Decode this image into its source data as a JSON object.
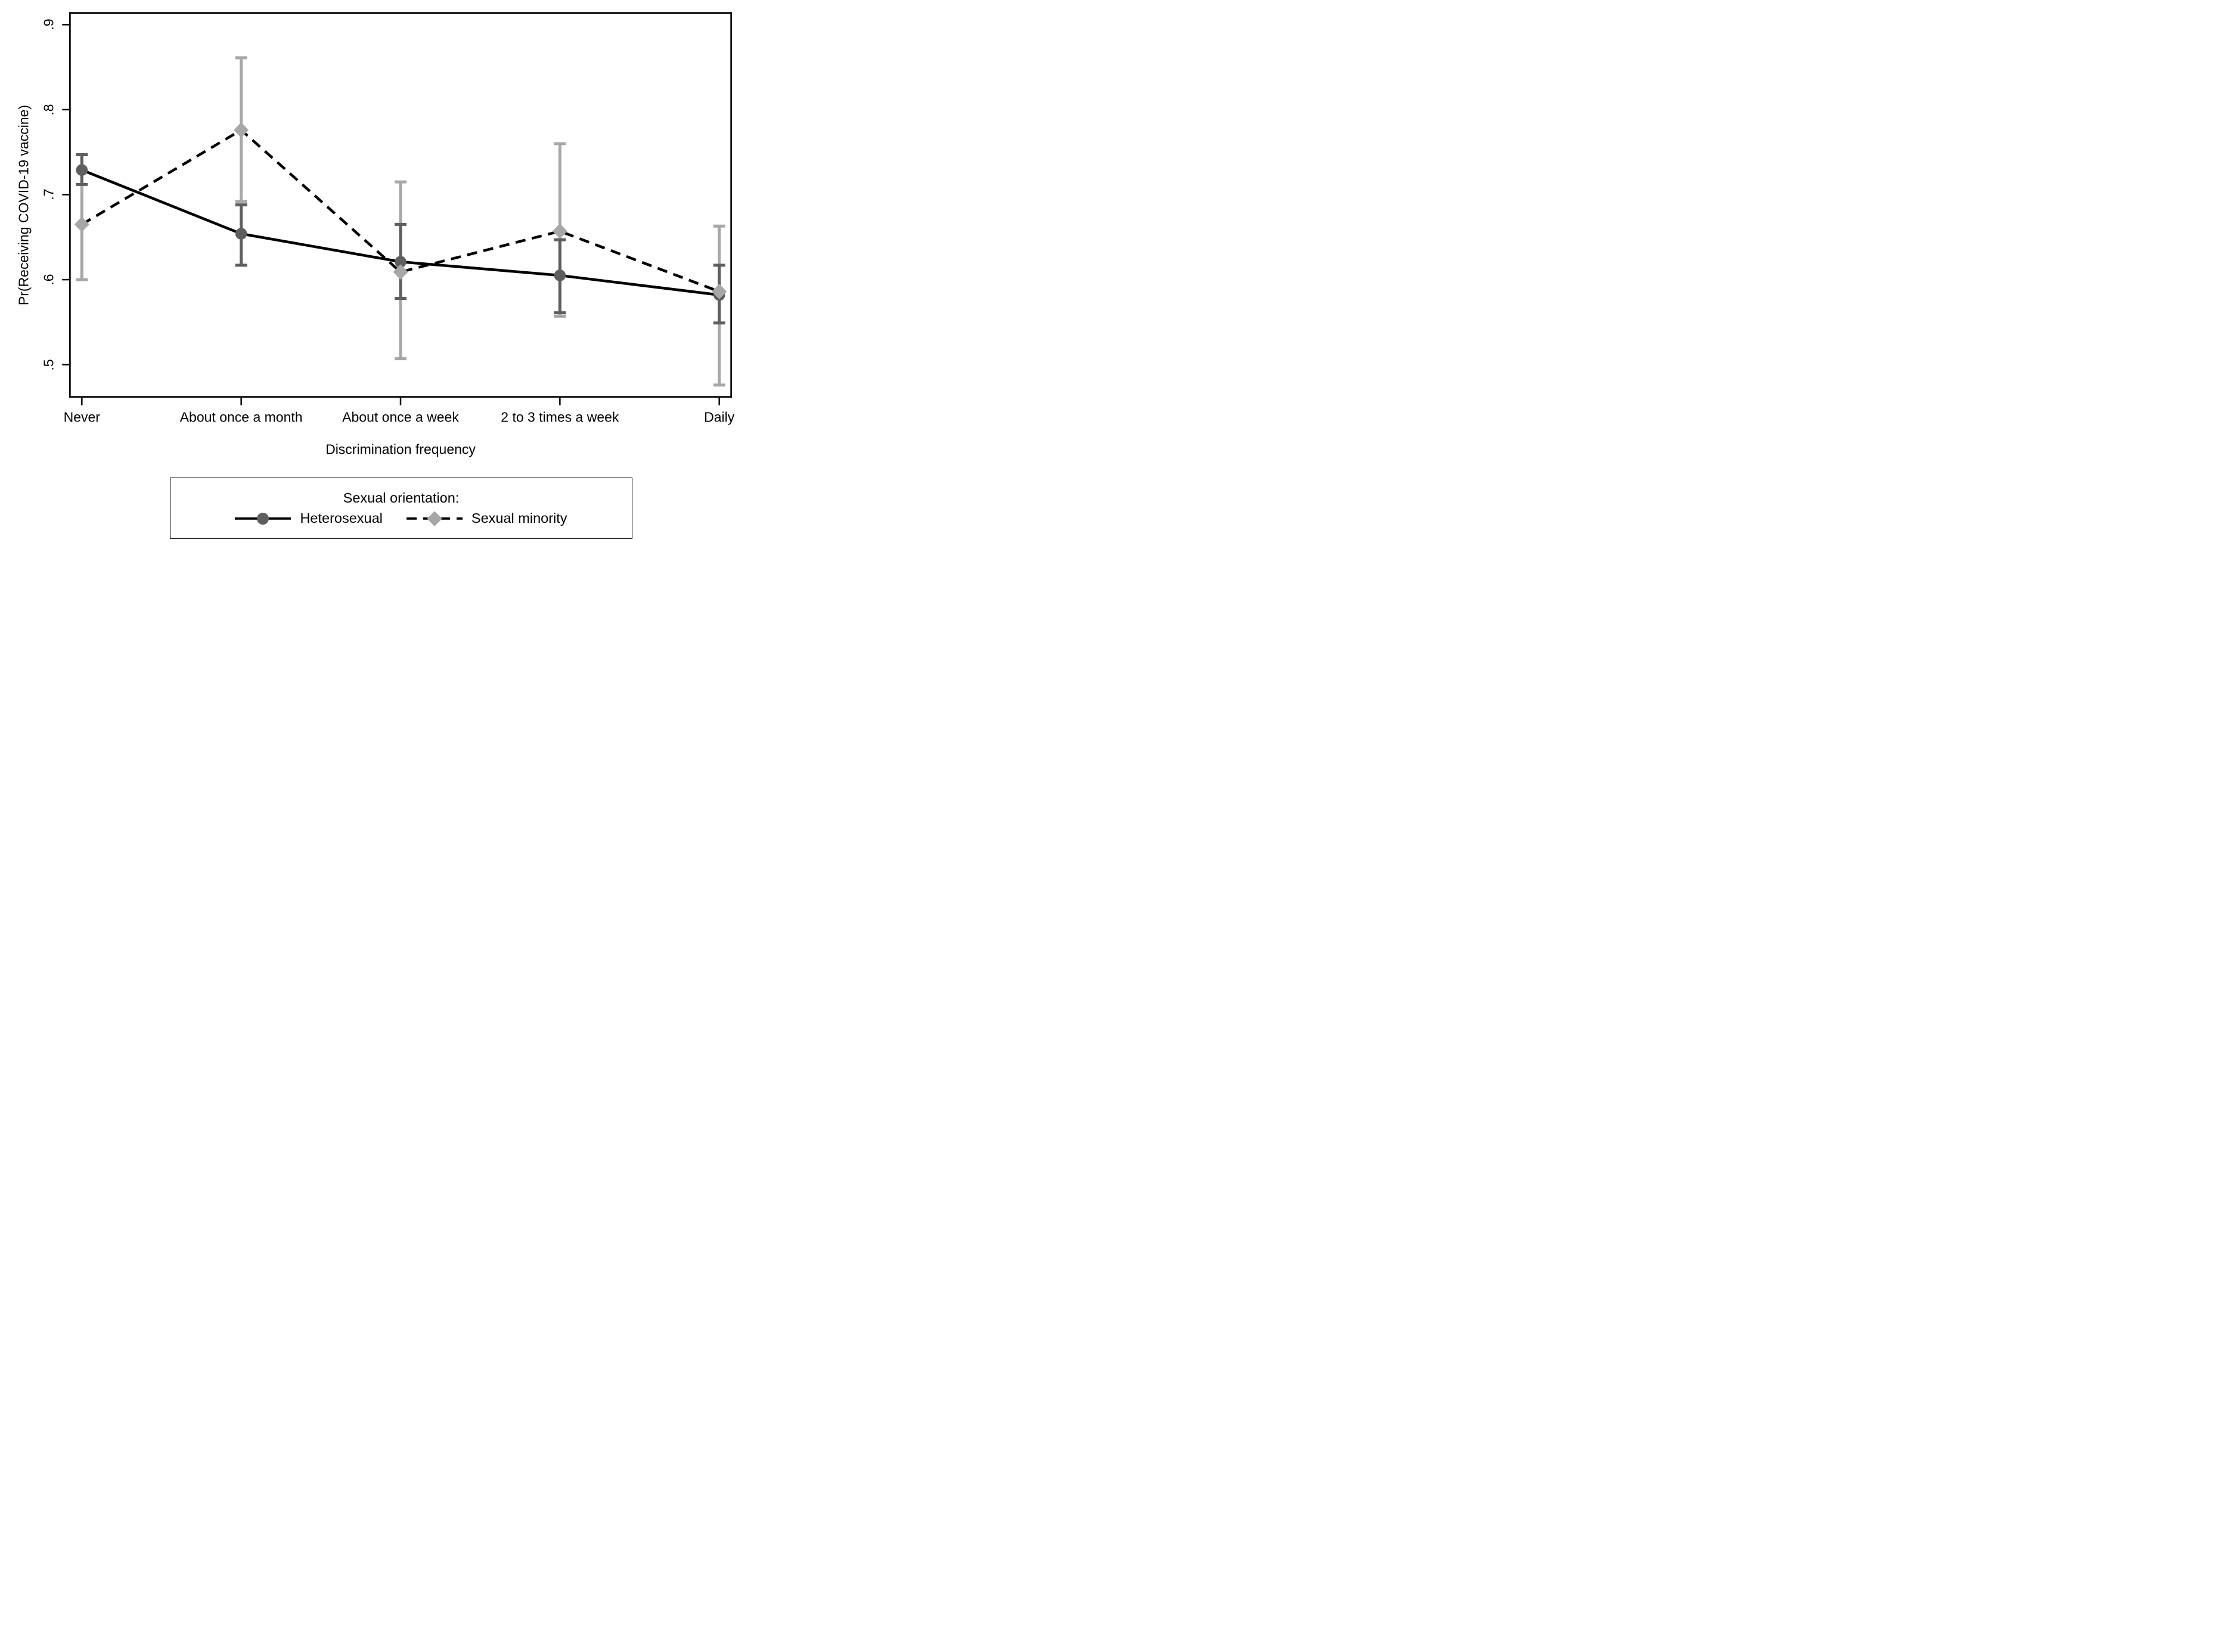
{
  "chart_data": {
    "type": "line",
    "title": "",
    "ylabel": "Pr(Receiving COVID-19 vaccine)",
    "xlabel": "Discrimination frequency",
    "categories": [
      "Never",
      "About once a month",
      "About once a week",
      "2 to 3 times a week",
      "Daily"
    ],
    "y_tick_labels": [
      ".5",
      ".6",
      ".7",
      ".8",
      ".9"
    ],
    "y_tick_values": [
      0.5,
      0.6,
      0.7,
      0.8,
      0.9
    ],
    "ylim": [
      0.462,
      0.914
    ],
    "grid": false,
    "legend_position": "bottom-outside",
    "legend": {
      "title": "Sexual orientation:",
      "entries": [
        "Heterosexual",
        "Sexual minority"
      ]
    },
    "series": [
      {
        "name": "Heterosexual",
        "marker": "circle",
        "linestyle": "solid",
        "line_color": "#000000",
        "marker_color": "#5e5e5e",
        "error_color": "#5e5e5e",
        "values": [
          0.729,
          0.654,
          0.621,
          0.605,
          0.582
        ],
        "ci_low": [
          0.712,
          0.617,
          0.578,
          0.561,
          0.549
        ],
        "ci_high": [
          0.747,
          0.688,
          0.665,
          0.647,
          0.617
        ]
      },
      {
        "name": "Sexual minority",
        "marker": "diamond",
        "linestyle": "dashed",
        "line_color": "#000000",
        "marker_color": "#a7a7a7",
        "error_color": "#a7a7a7",
        "values": [
          0.665,
          0.776,
          0.609,
          0.657,
          0.586
        ],
        "ci_low": [
          0.6,
          0.692,
          0.507,
          0.557,
          0.476
        ],
        "ci_high": [
          0.728,
          0.861,
          0.715,
          0.76,
          0.663
        ]
      }
    ]
  }
}
